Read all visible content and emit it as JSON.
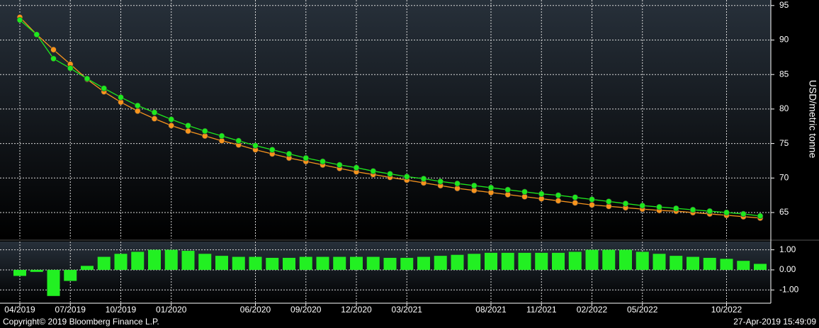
{
  "chart_data": [
    {
      "type": "line",
      "y_axis_label": "USD/metric tonne",
      "ylim": [
        61.2,
        95.8
      ],
      "yticks": [
        65,
        70,
        75,
        80,
        85,
        90,
        95
      ],
      "grid": true,
      "series": [
        {
          "color": "#f7941d",
          "values": [
            93.3,
            90.8,
            88.6,
            86.5,
            84.3,
            82.5,
            81.0,
            79.7,
            78.6,
            77.6,
            76.8,
            76.1,
            75.4,
            74.8,
            74.1,
            73.5,
            72.9,
            72.4,
            71.9,
            71.4,
            70.9,
            70.5,
            70.1,
            69.7,
            69.3,
            68.9,
            68.5,
            68.2,
            67.9,
            67.6,
            67.3,
            67.0,
            66.7,
            66.4,
            66.1,
            65.9,
            65.7,
            65.5,
            65.3,
            65.2,
            65.0,
            64.8,
            64.6,
            64.4,
            64.2
          ]
        },
        {
          "color": "#1ee81e",
          "values": [
            92.9,
            90.8,
            87.3,
            85.9,
            84.4,
            83.0,
            81.7,
            80.5,
            79.5,
            78.5,
            77.6,
            76.8,
            76.1,
            75.4,
            74.7,
            74.1,
            73.5,
            72.9,
            72.4,
            71.9,
            71.5,
            71.0,
            70.6,
            70.2,
            69.9,
            69.5,
            69.2,
            68.9,
            68.6,
            68.3,
            68.0,
            67.7,
            67.5,
            67.2,
            66.9,
            66.6,
            66.3,
            66.0,
            65.8,
            65.6,
            65.4,
            65.2,
            65.0,
            64.8,
            64.5
          ]
        }
      ]
    },
    {
      "type": "bar",
      "color": "#22f022",
      "grid": true,
      "ylim": [
        -1.66,
        1.41
      ],
      "yticks": [
        {
          "value": -1,
          "label": "-1.00"
        },
        {
          "value": 0,
          "label": "0.00"
        },
        {
          "value": 1,
          "label": "1.00"
        }
      ],
      "categories": [
        "04/2019",
        null,
        null,
        "07/2019",
        null,
        null,
        "10/2019",
        null,
        null,
        "01/2020",
        null,
        null,
        null,
        null,
        "06/2020",
        null,
        null,
        "09/2020",
        null,
        null,
        "12/2020",
        null,
        null,
        "03/2021",
        null,
        null,
        null,
        null,
        "08/2021",
        null,
        null,
        "11/2021",
        null,
        null,
        "02/2022",
        null,
        null,
        "05/2022",
        null,
        null,
        null,
        null,
        "10/2022",
        null,
        null
      ],
      "values": [
        -0.3,
        -0.1,
        -1.3,
        -0.55,
        0.2,
        0.65,
        0.8,
        0.9,
        1.0,
        1.0,
        0.95,
        0.8,
        0.7,
        0.65,
        0.65,
        0.6,
        0.6,
        0.65,
        0.65,
        0.65,
        0.65,
        0.65,
        0.6,
        0.6,
        0.65,
        0.7,
        0.75,
        0.8,
        0.85,
        0.85,
        0.85,
        0.85,
        0.85,
        0.9,
        1.0,
        1.0,
        1.0,
        0.9,
        0.8,
        0.7,
        0.65,
        0.6,
        0.55,
        0.45,
        0.3
      ]
    }
  ],
  "footer": {
    "copyright": "Copyright© 2019 Bloomberg Finance L.P.",
    "timestamp": "27-Apr-2019 15:49:09"
  }
}
